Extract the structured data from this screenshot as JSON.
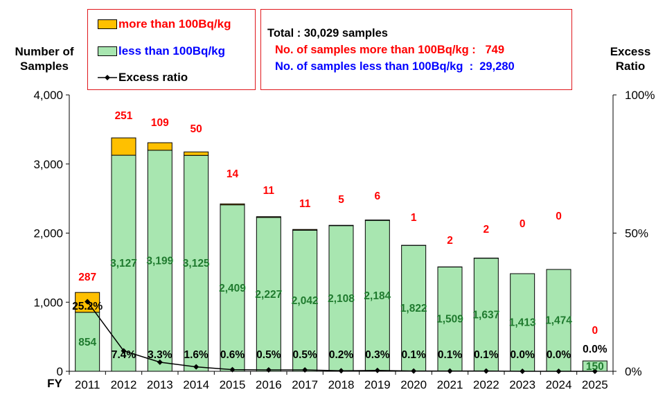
{
  "legend": {
    "over_label": "more than 100Bq/kg",
    "under_label": "less than 100Bq/kg",
    "ratio_label": "Excess ratio"
  },
  "summary": {
    "total": "Total : 30,029 samples",
    "over": "No. of samples more than 100Bq/kg :   749",
    "under": "No. of samples less than 100Bq/kg  :  29,280"
  },
  "axis_titles": {
    "left_line1": "Number of",
    "left_line2": "Samples",
    "right_line1": "Excess",
    "right_line2": "Ratio",
    "x": "FY"
  },
  "colors": {
    "over": "#ffc000",
    "under": "#a8e6b0",
    "over_label_text": "#ff0000",
    "under_label_text": "#0000ff",
    "under_value_text": "#1f7a2e",
    "over_value_text": "#ff0000",
    "ratio_line": "#000000"
  },
  "chart_data": {
    "type": "bar",
    "stacked": true,
    "categories": [
      "2011",
      "2012",
      "2013",
      "2014",
      "2015",
      "2016",
      "2017",
      "2018",
      "2019",
      "2020",
      "2021",
      "2022",
      "2023",
      "2024",
      "2025"
    ],
    "series": [
      {
        "name": "less than 100Bq/kg",
        "values": [
          854,
          3127,
          3199,
          3125,
          2409,
          2227,
          2042,
          2108,
          2184,
          1822,
          1509,
          1637,
          1413,
          1474,
          150
        ]
      },
      {
        "name": "more than 100Bq/kg",
        "values": [
          287,
          251,
          109,
          50,
          14,
          11,
          11,
          5,
          6,
          1,
          2,
          2,
          0,
          0,
          0
        ]
      }
    ],
    "line_series": {
      "name": "Excess ratio",
      "values": [
        25.2,
        7.4,
        3.3,
        1.6,
        0.6,
        0.5,
        0.5,
        0.2,
        0.3,
        0.1,
        0.1,
        0.1,
        0.0,
        0.0,
        0.0
      ],
      "labels": [
        "25.2%",
        "7.4%",
        "3.3%",
        "1.6%",
        "0.6%",
        "0.5%",
        "0.5%",
        "0.2%",
        "0.3%",
        "0.1%",
        "0.1%",
        "0.1%",
        "0.0%",
        "0.0%",
        "0.0%"
      ]
    },
    "under_labels": [
      "854",
      "3,127",
      "3,199",
      "3,125",
      "2,409",
      "2,227",
      "2,042",
      "2,108",
      "2,184",
      "1,822",
      "1,509",
      "1,637",
      "1,413",
      "1,474",
      "150"
    ],
    "over_labels": [
      "287",
      "251",
      "109",
      "50",
      "14",
      "11",
      "11",
      "5",
      "6",
      "1",
      "2",
      "2",
      "0",
      "0",
      "0"
    ],
    "y_left": {
      "min": 0,
      "max": 4000,
      "ticks": [
        0,
        1000,
        2000,
        3000,
        4000
      ],
      "tick_labels": [
        "0",
        "1,000",
        "2,000",
        "3,000",
        "4,000"
      ]
    },
    "y_right": {
      "min": 0,
      "max": 100,
      "ticks": [
        0,
        50,
        100
      ],
      "tick_labels": [
        "0%",
        "50%",
        "100%"
      ]
    },
    "grid": false
  }
}
